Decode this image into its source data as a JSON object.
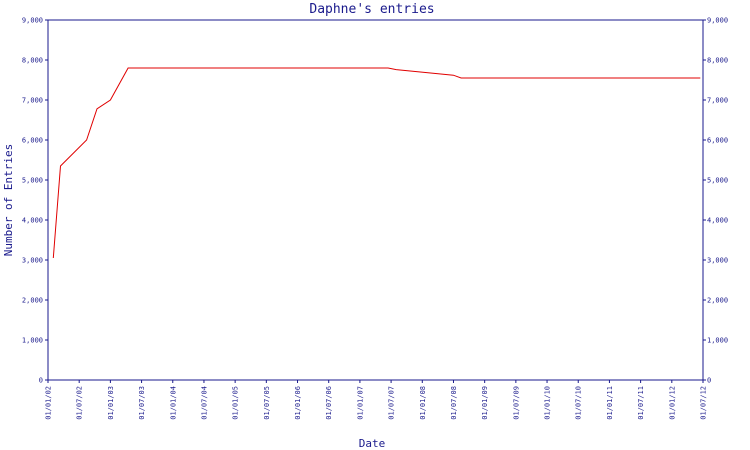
{
  "chart_data": {
    "type": "line",
    "title": "Daphne's entries",
    "xlabel": "Date",
    "ylabel": "Number of Entries",
    "x_ticks": [
      "01/01/02",
      "01/07/02",
      "01/01/03",
      "01/07/03",
      "01/01/04",
      "01/07/04",
      "01/01/05",
      "01/07/05",
      "01/01/06",
      "01/07/06",
      "01/01/07",
      "01/07/07",
      "01/01/08",
      "01/07/08",
      "01/01/09",
      "01/07/09",
      "01/01/10",
      "01/07/10",
      "01/01/11",
      "01/07/11",
      "01/01/12",
      "01/07/12"
    ],
    "y_ticks": [
      "0",
      "1,000",
      "2,000",
      "3,000",
      "4,000",
      "5,000",
      "6,000",
      "7,000",
      "8,000",
      "9,000"
    ],
    "right_y_ticks": [
      "0",
      "1,000",
      "2,000",
      "3,000",
      "4,000",
      "5,000",
      "6,000",
      "7,000",
      "8,000",
      "9,000"
    ],
    "ylim": [
      0,
      9000
    ],
    "xlim": [
      "2002-01-01",
      "2012-07-01"
    ],
    "grid": false,
    "colors": {
      "axis": "#1a1a8c",
      "line": "#e00000"
    },
    "series": [
      {
        "x": [
          "2002-02-01",
          "2002-03-15",
          "2002-08-15",
          "2002-10-15",
          "2003-01-01",
          "2003-04-15",
          "2003-05-10",
          "2007-06-15",
          "2007-08-01",
          "2008-07-01",
          "2008-08-15",
          "2012-06-15"
        ],
        "values": [
          3050,
          5350,
          6000,
          6780,
          7000,
          7800,
          7800,
          7800,
          7760,
          7620,
          7550,
          7550
        ]
      }
    ]
  }
}
